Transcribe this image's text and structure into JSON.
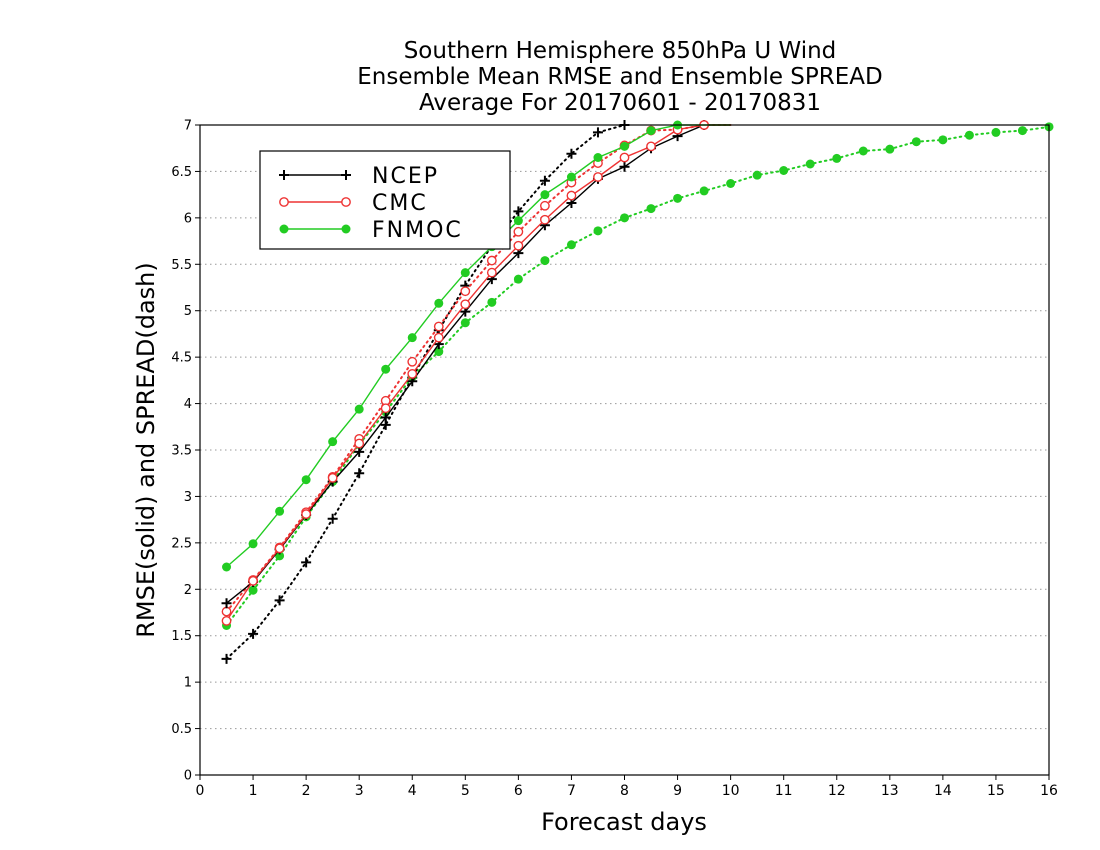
{
  "chart_data": {
    "type": "line",
    "title": [
      "Southern Hemisphere 850hPa U Wind",
      "Ensemble Mean RMSE and Ensemble SPREAD",
      "Average For 20170601 - 20170831"
    ],
    "xlabel": "Forecast days",
    "ylabel": "RMSE(solid) and SPREAD(dash)",
    "xlim": [
      0,
      16
    ],
    "ylim": [
      0,
      7
    ],
    "xticks": [
      0,
      1,
      2,
      3,
      4,
      5,
      6,
      7,
      8,
      9,
      10,
      11,
      12,
      13,
      14,
      15,
      16
    ],
    "yticks": [
      0,
      0.5,
      1,
      1.5,
      2,
      2.5,
      3,
      3.5,
      4,
      4.5,
      5,
      5.5,
      6,
      6.5,
      7
    ],
    "ytick_labels": [
      "0",
      "0.5",
      "1",
      "1.5",
      "2",
      "2.5",
      "3",
      "3.5",
      "4",
      "4.5",
      "5",
      "5.5",
      "6",
      "6.5",
      "7"
    ],
    "grid": "horizontal dotted",
    "legend_placement": "top-left",
    "series": [
      {
        "name": "NCEP",
        "color": "#000000",
        "marker": "plus",
        "style": "solid",
        "x": [
          0.5,
          1,
          1.5,
          2,
          2.5,
          3,
          3.5,
          4,
          4.5,
          5,
          5.5,
          6,
          6.5,
          7,
          7.5,
          8,
          8.5,
          9,
          9.5,
          10
        ],
        "y": [
          1.85,
          2.08,
          2.43,
          2.8,
          3.16,
          3.48,
          3.85,
          4.24,
          4.64,
          4.99,
          5.34,
          5.62,
          5.92,
          6.16,
          6.42,
          6.55,
          6.75,
          6.88,
          7.0,
          7.0
        ]
      },
      {
        "name": "CMC",
        "color": "#ee3333",
        "marker": "open-circle",
        "style": "solid",
        "x": [
          0.5,
          1,
          1.5,
          2,
          2.5,
          3,
          3.5,
          4,
          4.5,
          5,
          5.5,
          6,
          6.5,
          7,
          7.5,
          8,
          8.5,
          9,
          9.5,
          10
        ],
        "y": [
          1.66,
          2.09,
          2.44,
          2.81,
          3.2,
          3.57,
          3.95,
          4.32,
          4.71,
          5.07,
          5.41,
          5.7,
          5.98,
          6.24,
          6.44,
          6.65,
          6.77,
          6.95,
          7.0,
          7.0
        ]
      },
      {
        "name": "FNMOC",
        "color": "#22cc22",
        "marker": "filled-circle",
        "style": "solid",
        "x": [
          0.5,
          1,
          1.5,
          2,
          2.5,
          3,
          3.5,
          4,
          4.5,
          5,
          5.5,
          6,
          6.5,
          7,
          7.5,
          8,
          8.5,
          9,
          9.5,
          10
        ],
        "y": [
          2.24,
          2.49,
          2.84,
          3.18,
          3.59,
          3.94,
          4.37,
          4.71,
          5.08,
          5.41,
          5.69,
          5.97,
          6.25,
          6.44,
          6.65,
          6.77,
          6.94,
          7.0,
          7.0,
          7.0
        ]
      },
      {
        "name": "NCEP spread",
        "color": "#000000",
        "marker": "plus",
        "style": "dotted",
        "x": [
          0.5,
          1,
          1.5,
          2,
          2.5,
          3,
          3.5,
          4,
          4.5,
          5,
          5.5,
          6,
          6.5,
          7,
          7.5,
          8
        ],
        "y": [
          1.25,
          1.52,
          1.88,
          2.29,
          2.76,
          3.25,
          3.77,
          4.28,
          4.79,
          5.27,
          5.7,
          6.07,
          6.4,
          6.69,
          6.92,
          7.0
        ]
      },
      {
        "name": "CMC spread",
        "color": "#ee3333",
        "marker": "open-circle",
        "style": "dotted",
        "x": [
          0.5,
          1,
          1.5,
          2,
          2.5,
          3,
          3.5,
          4,
          4.5,
          5,
          5.5,
          6,
          6.5,
          7,
          7.5,
          8,
          8.5,
          9,
          9.5,
          10
        ],
        "y": [
          1.76,
          2.1,
          2.45,
          2.83,
          3.21,
          3.62,
          4.03,
          4.45,
          4.83,
          5.21,
          5.54,
          5.85,
          6.13,
          6.38,
          6.59,
          6.78,
          6.94,
          6.95,
          7.0,
          7.0
        ]
      },
      {
        "name": "FNMOC spread",
        "color": "#22cc22",
        "marker": "filled-circle",
        "style": "dotted",
        "x": [
          0.5,
          1,
          1.5,
          2,
          2.5,
          3,
          3.5,
          4,
          4.5,
          5,
          5.5,
          6,
          6.5,
          7,
          7.5,
          8,
          8.5,
          9,
          9.5,
          10,
          10.5,
          11,
          11.5,
          12,
          12.5,
          13,
          13.5,
          14,
          14.5,
          15,
          15.5,
          16
        ],
        "y": [
          1.61,
          1.99,
          2.36,
          2.78,
          3.16,
          3.56,
          3.91,
          4.29,
          4.56,
          4.87,
          5.09,
          5.34,
          5.54,
          5.71,
          5.86,
          6.0,
          6.1,
          6.21,
          6.29,
          6.37,
          6.46,
          6.51,
          6.58,
          6.64,
          6.72,
          6.74,
          6.82,
          6.84,
          6.89,
          6.92,
          6.94,
          6.98
        ]
      }
    ],
    "legend": [
      "NCEP",
      "CMC",
      "FNMOC"
    ]
  }
}
